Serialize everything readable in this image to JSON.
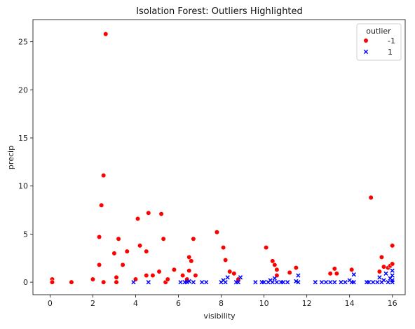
{
  "chart_data": {
    "type": "scatter",
    "title": "Isolation Forest: Outliers Highlighted",
    "xlabel": "visibility",
    "ylabel": "precip",
    "xlim": [
      -0.8,
      16.6
    ],
    "ylim": [
      -1.3,
      27.3
    ],
    "x_ticks": [
      0,
      2,
      4,
      6,
      8,
      10,
      12,
      14,
      16
    ],
    "y_ticks": [
      0,
      5,
      10,
      15,
      20,
      25
    ],
    "grid": false,
    "legend": {
      "title": "outlier",
      "placement": "top-right",
      "entries": [
        {
          "label": "-1",
          "marker": "circle",
          "color": "#ff0000"
        },
        {
          "label": "1",
          "marker": "x",
          "color": "#0000ff"
        }
      ]
    },
    "series": [
      {
        "name": "-1",
        "marker": "circle",
        "color": "#ff0000",
        "points": [
          [
            0.1,
            0.3
          ],
          [
            0.1,
            0.0
          ],
          [
            1.0,
            0.0
          ],
          [
            2.0,
            0.3
          ],
          [
            2.3,
            1.8
          ],
          [
            2.3,
            4.7
          ],
          [
            2.4,
            8.0
          ],
          [
            2.5,
            11.1
          ],
          [
            2.6,
            25.8
          ],
          [
            2.5,
            0.0
          ],
          [
            3.0,
            3.0
          ],
          [
            3.1,
            0.5
          ],
          [
            3.1,
            0.0
          ],
          [
            3.2,
            4.5
          ],
          [
            3.4,
            1.8
          ],
          [
            3.6,
            3.2
          ],
          [
            4.0,
            0.3
          ],
          [
            4.1,
            6.6
          ],
          [
            4.2,
            3.8
          ],
          [
            4.5,
            3.2
          ],
          [
            4.6,
            7.2
          ],
          [
            4.5,
            0.7
          ],
          [
            4.8,
            0.7
          ],
          [
            5.1,
            1.1
          ],
          [
            5.2,
            7.1
          ],
          [
            5.3,
            4.5
          ],
          [
            5.4,
            0.0
          ],
          [
            5.5,
            0.3
          ],
          [
            5.8,
            1.3
          ],
          [
            6.2,
            0.7
          ],
          [
            6.4,
            0.3
          ],
          [
            6.5,
            1.2
          ],
          [
            6.5,
            2.6
          ],
          [
            6.6,
            2.2
          ],
          [
            6.7,
            4.5
          ],
          [
            6.8,
            0.7
          ],
          [
            7.8,
            5.2
          ],
          [
            8.1,
            3.6
          ],
          [
            8.2,
            2.3
          ],
          [
            8.4,
            1.1
          ],
          [
            8.6,
            0.9
          ],
          [
            8.8,
            0.3
          ],
          [
            10.1,
            3.6
          ],
          [
            10.4,
            2.2
          ],
          [
            10.5,
            1.8
          ],
          [
            10.6,
            1.3
          ],
          [
            10.6,
            0.7
          ],
          [
            11.2,
            1.0
          ],
          [
            11.5,
            1.5
          ],
          [
            13.1,
            0.9
          ],
          [
            13.3,
            1.4
          ],
          [
            13.4,
            0.9
          ],
          [
            14.1,
            1.3
          ],
          [
            15.0,
            8.8
          ],
          [
            15.4,
            1.1
          ],
          [
            15.5,
            2.6
          ],
          [
            15.6,
            1.6
          ],
          [
            15.8,
            1.5
          ],
          [
            15.9,
            1.7
          ],
          [
            16.0,
            1.9
          ],
          [
            16.0,
            3.8
          ]
        ]
      },
      {
        "name": "1",
        "marker": "x",
        "color": "#0000ff",
        "points": [
          [
            3.9,
            0.0
          ],
          [
            4.6,
            0.0
          ],
          [
            6.1,
            0.0
          ],
          [
            6.3,
            0.0
          ],
          [
            6.4,
            0.0
          ],
          [
            6.5,
            0.1
          ],
          [
            6.7,
            0.0
          ],
          [
            7.1,
            0.0
          ],
          [
            7.3,
            0.0
          ],
          [
            8.0,
            0.0
          ],
          [
            8.1,
            0.2
          ],
          [
            8.2,
            0.0
          ],
          [
            8.3,
            0.5
          ],
          [
            8.7,
            0.0
          ],
          [
            8.8,
            0.0
          ],
          [
            8.9,
            0.5
          ],
          [
            9.6,
            0.0
          ],
          [
            9.9,
            0.0
          ],
          [
            10.0,
            0.0
          ],
          [
            10.2,
            0.0
          ],
          [
            10.3,
            0.2
          ],
          [
            10.4,
            0.0
          ],
          [
            10.5,
            0.4
          ],
          [
            10.6,
            0.0
          ],
          [
            10.8,
            0.0
          ],
          [
            10.9,
            0.0
          ],
          [
            11.1,
            0.0
          ],
          [
            11.5,
            0.1
          ],
          [
            11.6,
            0.7
          ],
          [
            11.6,
            0.0
          ],
          [
            12.4,
            0.0
          ],
          [
            12.7,
            0.0
          ],
          [
            12.9,
            0.0
          ],
          [
            13.1,
            0.0
          ],
          [
            13.3,
            0.0
          ],
          [
            13.6,
            0.0
          ],
          [
            13.8,
            0.0
          ],
          [
            14.0,
            0.2
          ],
          [
            14.1,
            0.0
          ],
          [
            14.2,
            0.8
          ],
          [
            14.2,
            0.0
          ],
          [
            14.8,
            0.0
          ],
          [
            14.9,
            0.0
          ],
          [
            15.1,
            0.0
          ],
          [
            15.3,
            0.0
          ],
          [
            15.4,
            0.5
          ],
          [
            15.5,
            0.0
          ],
          [
            15.6,
            0.2
          ],
          [
            15.7,
            0.9
          ],
          [
            15.8,
            0.0
          ],
          [
            15.9,
            0.4
          ],
          [
            16.0,
            0.0
          ],
          [
            16.0,
            0.7
          ],
          [
            16.0,
            1.2
          ],
          [
            16.0,
            0.2
          ]
        ]
      }
    ]
  }
}
